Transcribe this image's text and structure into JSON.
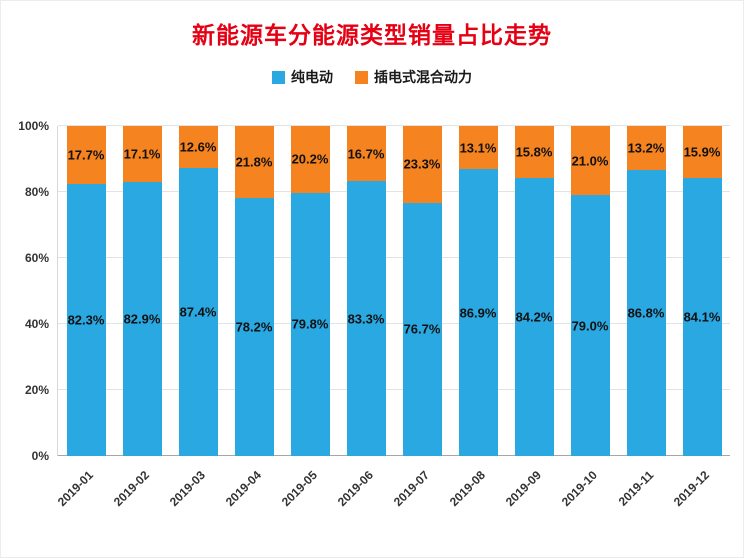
{
  "title": "新能源车分能源类型销量占比走势",
  "legend": [
    {
      "label": "纯电动",
      "color": "#29a8e2"
    },
    {
      "label": "插电式混合动力",
      "color": "#f5831f"
    }
  ],
  "colors": {
    "title": "#e60014",
    "axis_text": "#333333",
    "grid": "#e3e3e3"
  },
  "chart_data": {
    "type": "bar",
    "stacked": true,
    "title": "新能源车分能源类型销量占比走势",
    "categories": [
      "2019-01",
      "2019-02",
      "2019-03",
      "2019-04",
      "2019-05",
      "2019-06",
      "2019-07",
      "2019-08",
      "2019-09",
      "2019-10",
      "2019-11",
      "2019-12"
    ],
    "series": [
      {
        "name": "纯电动",
        "color": "#29a8e2",
        "values": [
          82.3,
          82.9,
          87.4,
          78.2,
          79.8,
          83.3,
          76.7,
          86.9,
          84.2,
          79.0,
          86.8,
          84.1
        ]
      },
      {
        "name": "插电式混合动力",
        "color": "#f5831f",
        "values": [
          17.7,
          17.1,
          12.6,
          21.8,
          20.2,
          16.7,
          23.3,
          13.1,
          15.8,
          21.0,
          13.2,
          15.9
        ]
      }
    ],
    "y_ticks": [
      "0%",
      "20%",
      "40%",
      "60%",
      "80%",
      "100%"
    ],
    "ylim": [
      0,
      100
    ],
    "grid": true,
    "legend_position": "top",
    "value_label_format": "{value}%"
  }
}
